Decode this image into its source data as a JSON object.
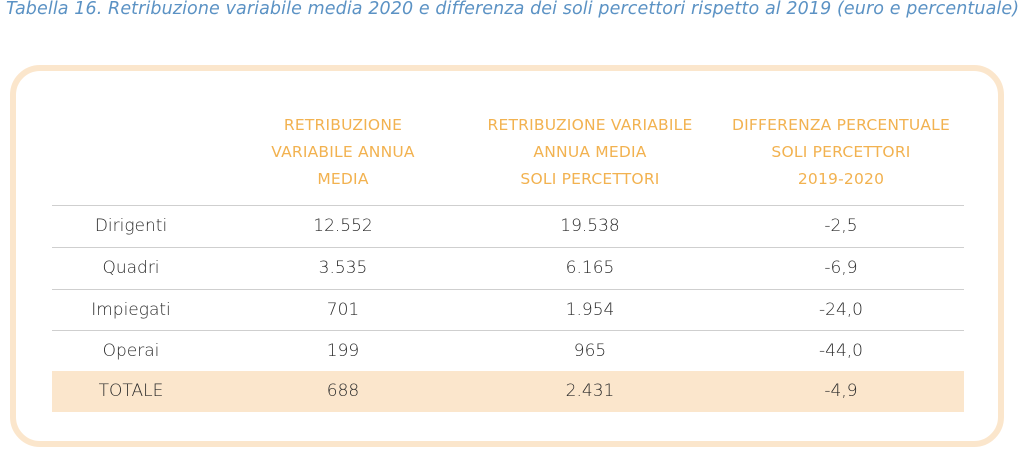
{
  "caption": "Tabella 16. Retribuzione variabile media 2020 e differenza dei soli percettori rispetto al 2019 (euro e percentuale)",
  "headers": {
    "col1": [
      "RETRIBUZIONE",
      "VARIABILE ANNUA",
      "MEDIA"
    ],
    "col2": [
      "RETRIBUZIONE VARIABILE",
      "ANNUA MEDIA",
      "SOLI PERCETTORI"
    ],
    "col3": [
      "DIFFERENZA PERCENTUALE",
      "SOLI PERCETTORI",
      "2019-2020"
    ]
  },
  "rows": [
    {
      "label": "Dirigenti",
      "media": "12.552",
      "percettori": "19.538",
      "diff": "-2,5"
    },
    {
      "label": "Quadri",
      "media": "3.535",
      "percettori": "6.165",
      "diff": "-6,9"
    },
    {
      "label": "Impiegati",
      "media": "701",
      "percettori": "1.954",
      "diff": "-24,0"
    },
    {
      "label": "Operai",
      "media": "199",
      "percettori": "965",
      "diff": "-44,0"
    },
    {
      "label": "TOTALE",
      "media": "688",
      "percettori": "2.431",
      "diff": "-4,9"
    }
  ],
  "colors": {
    "caption": "#5b92c4",
    "header": "#f2b250",
    "frame": "#fbe6cc",
    "total_row": "#fbe6cc"
  }
}
